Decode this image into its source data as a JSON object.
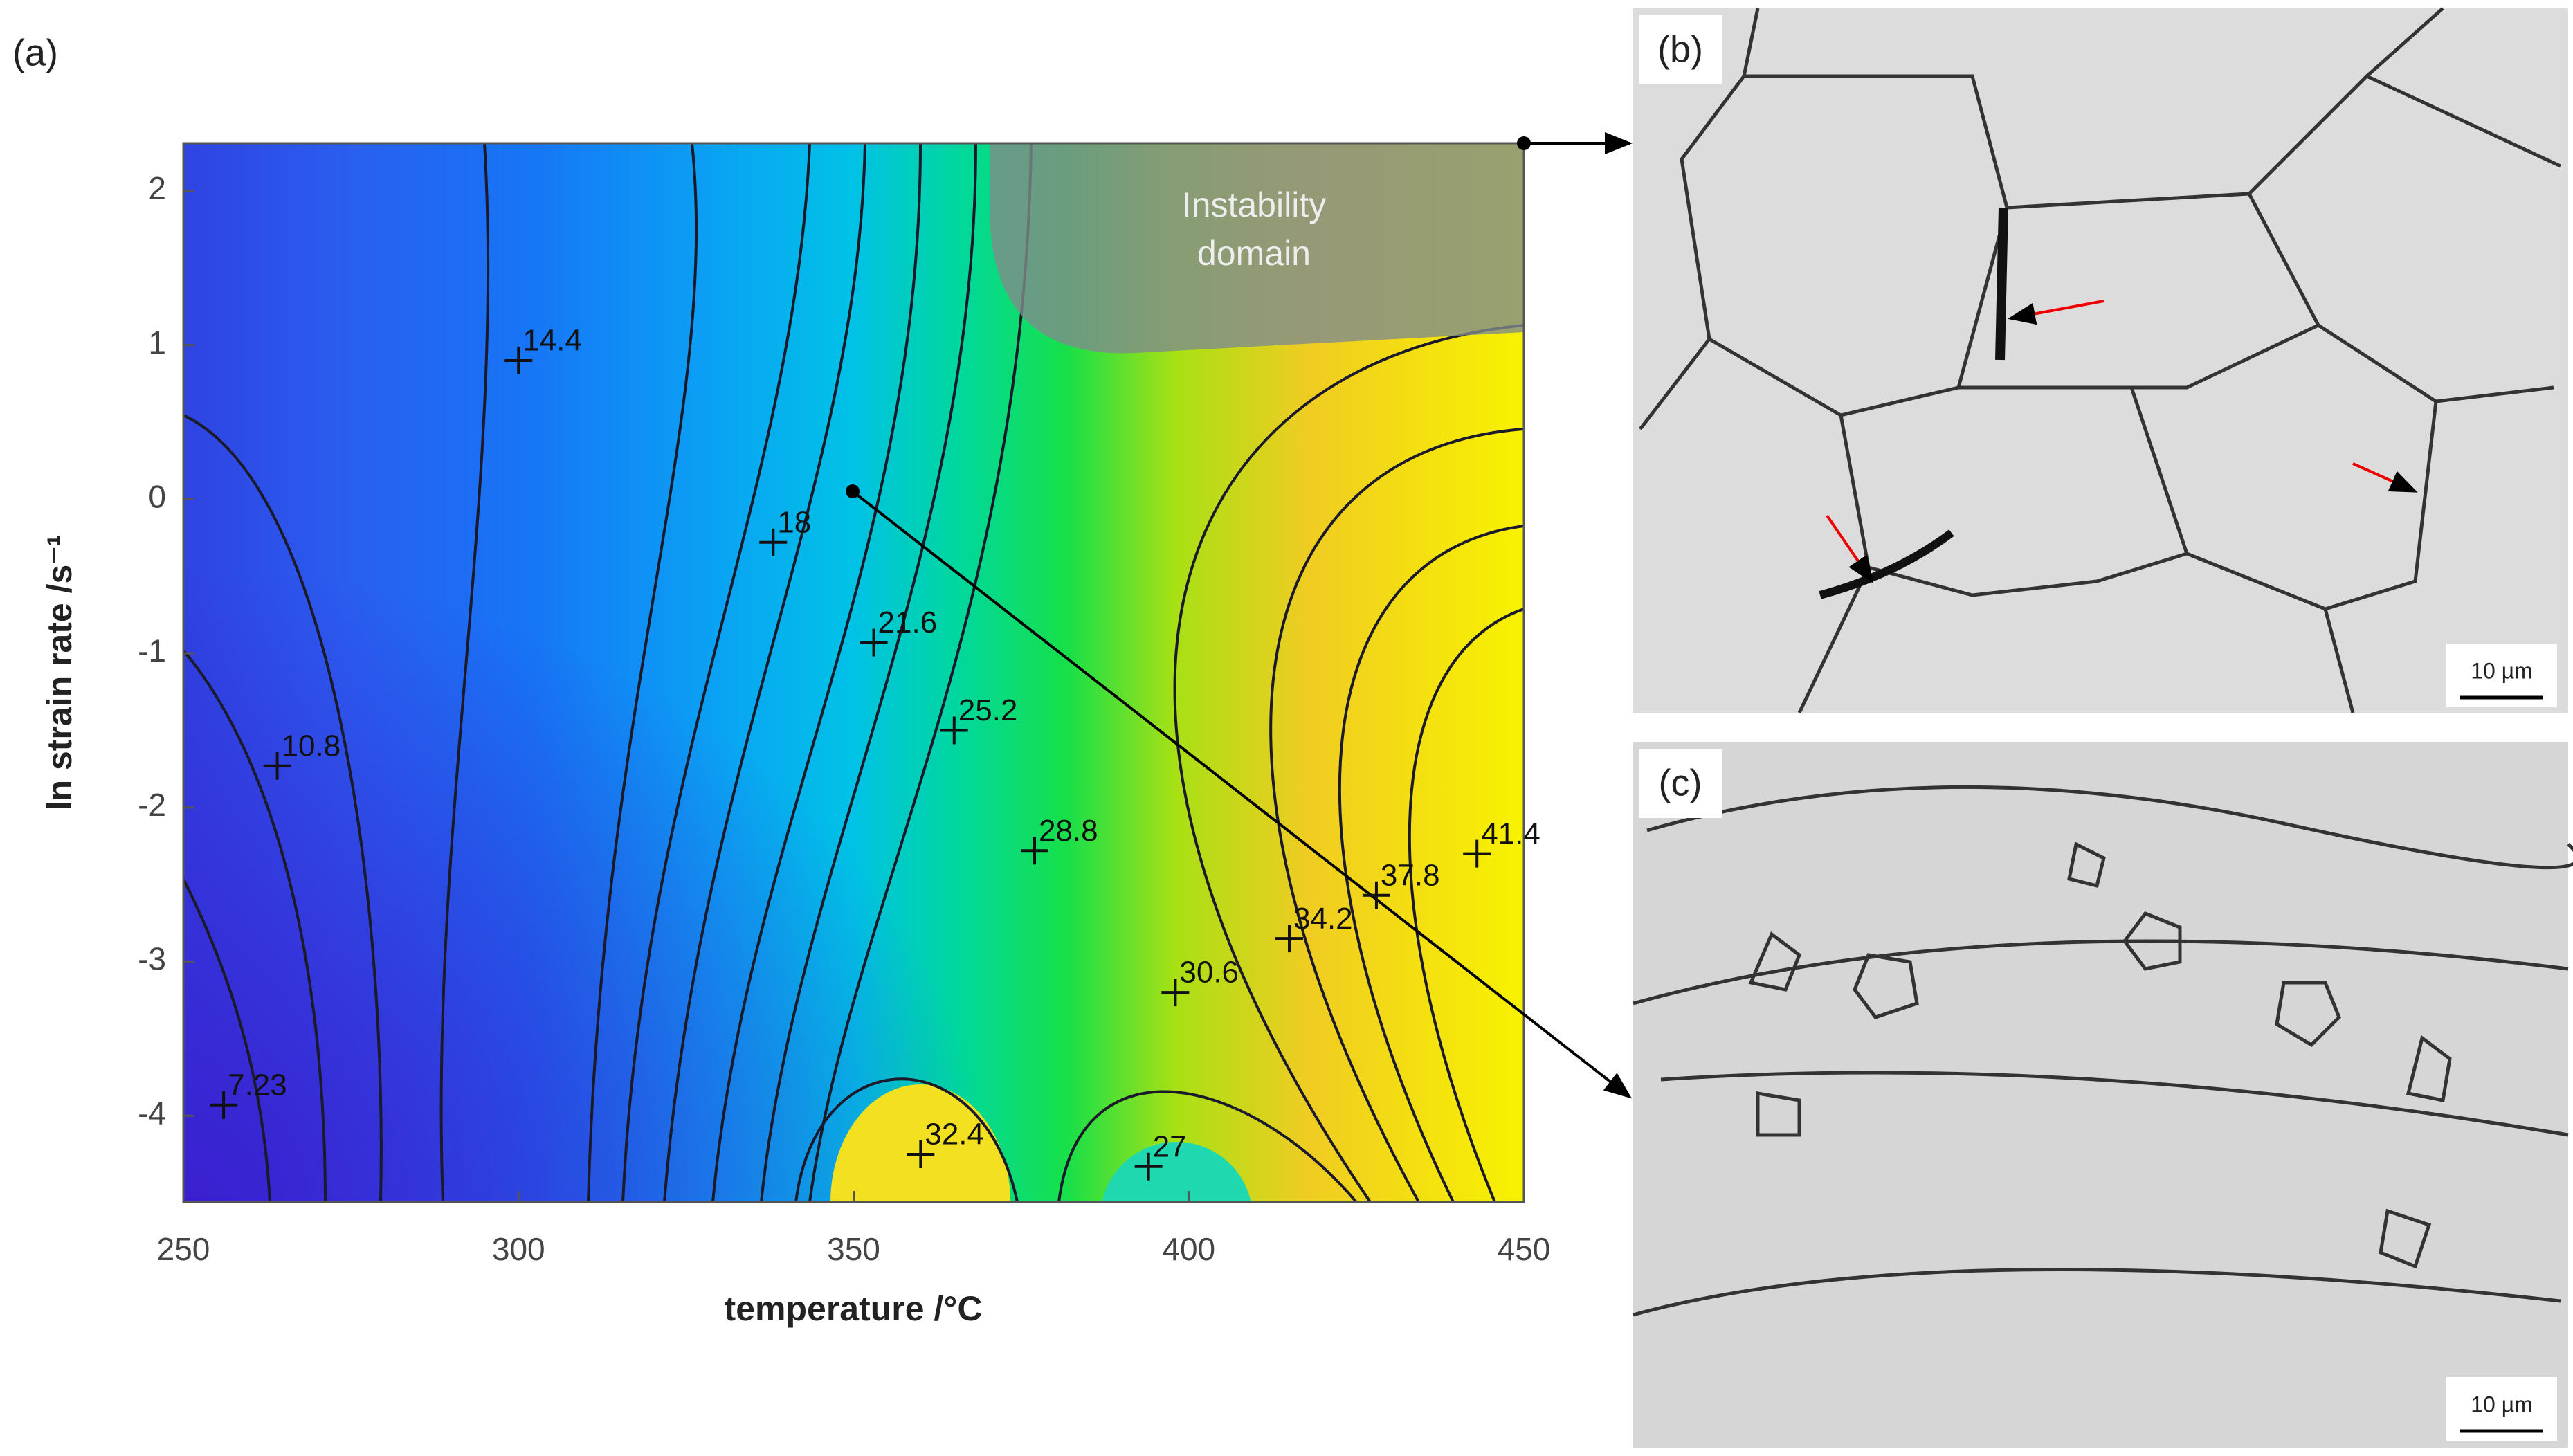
{
  "chart_data": {
    "type": "contour",
    "xlabel": "temperature /°C",
    "ylabel": "ln strain rate /s⁻¹",
    "xlim": [
      250,
      450
    ],
    "ylim": [
      -4.56,
      2.31
    ],
    "xticks": [
      250,
      300,
      350,
      400,
      450
    ],
    "yticks": [
      -4,
      -3,
      -2,
      -1,
      0,
      1,
      2
    ],
    "annotation": [
      "Instability",
      "domain"
    ],
    "contour_labels": [
      {
        "value": 7.23,
        "x": 256,
        "y": -3.93
      },
      {
        "value": 10.8,
        "x": 264,
        "y": -1.73
      },
      {
        "value": 14.4,
        "x": 300,
        "y": 0.9
      },
      {
        "value": 18,
        "x": 338,
        "y": -0.28
      },
      {
        "value": 21.6,
        "x": 353,
        "y": -0.93
      },
      {
        "value": 25.2,
        "x": 365,
        "y": -1.5
      },
      {
        "value": 28.8,
        "x": 377,
        "y": -2.28
      },
      {
        "value": 30.6,
        "x": 398,
        "y": -3.2
      },
      {
        "value": 32.4,
        "x": 360,
        "y": -4.25
      },
      {
        "value": 27,
        "x": 394,
        "y": -4.33
      },
      {
        "value": 34.2,
        "x": 415,
        "y": -2.85
      },
      {
        "value": 37.8,
        "x": 428,
        "y": -2.57
      },
      {
        "value": 41.4,
        "x": 443,
        "y": -2.3
      }
    ]
  },
  "panels": [
    "(a)",
    "(b)",
    "(c)"
  ],
  "scale_bars": [
    "10 µm",
    "10 µm"
  ]
}
